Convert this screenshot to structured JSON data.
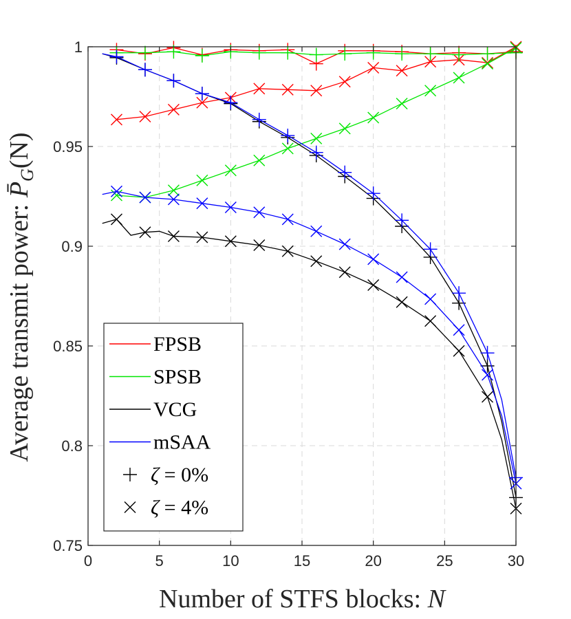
{
  "chart_data": {
    "type": "line",
    "title": "",
    "xlabel_text": "Number of STFS blocks: ",
    "xlabel_var": "N",
    "ylabel_text": "Average transmit power: ",
    "ylabel_var": "P̄",
    "ylabel_sub": "G",
    "ylabel_arg": "(N)",
    "xlim": [
      0,
      30
    ],
    "ylim": [
      0.75,
      1.0
    ],
    "x_ticks": [
      0,
      5,
      10,
      15,
      20,
      25,
      30
    ],
    "x_tick_labels": [
      "0",
      "5",
      "10",
      "15",
      "20",
      "25",
      "30"
    ],
    "y_ticks": [
      0.75,
      0.8,
      0.85,
      0.9,
      0.95,
      1.0
    ],
    "y_tick_labels": [
      "0.75",
      "0.8",
      "0.85",
      "0.9",
      "0.95",
      "1"
    ],
    "grid": true,
    "legend_position": "bottom-left",
    "series": [
      {
        "name": "FPSB ζ=0%",
        "method": "FPSB",
        "marker": "plus",
        "color": "#ff0000",
        "x": [
          2,
          4,
          6,
          8,
          10,
          12,
          14,
          16,
          18,
          20,
          22,
          24,
          26,
          28,
          30
        ],
        "y": [
          0.9985,
          0.9965,
          0.9995,
          0.996,
          0.9985,
          0.998,
          0.9985,
          0.9915,
          0.998,
          0.998,
          0.9975,
          0.9965,
          0.997,
          0.9965,
          0.9975
        ]
      },
      {
        "name": "FPSB ζ=4%",
        "method": "FPSB",
        "marker": "cross",
        "color": "#ff0000",
        "x": [
          2,
          4,
          6,
          8,
          10,
          12,
          14,
          16,
          18,
          20,
          22,
          24,
          26,
          28,
          30
        ],
        "y": [
          0.9635,
          0.965,
          0.9685,
          0.972,
          0.9745,
          0.979,
          0.9785,
          0.978,
          0.9825,
          0.9895,
          0.988,
          0.9925,
          0.9935,
          0.992,
          1.0
        ]
      },
      {
        "name": "SPSB ζ=0%",
        "method": "SPSB",
        "marker": "plus",
        "color": "#00e600",
        "x": [
          2,
          4,
          6,
          8,
          10,
          12,
          14,
          16,
          18,
          20,
          22,
          24,
          26,
          28,
          30
        ],
        "y": [
          0.997,
          0.997,
          0.9975,
          0.9955,
          0.9975,
          0.997,
          0.997,
          0.996,
          0.9965,
          0.997,
          0.9965,
          0.9965,
          0.996,
          0.9965,
          0.997
        ]
      },
      {
        "name": "SPSB ζ=4%",
        "method": "SPSB",
        "marker": "cross",
        "color": "#00e600",
        "x": [
          2,
          4,
          6,
          8,
          10,
          12,
          14,
          16,
          18,
          20,
          22,
          24,
          26,
          28,
          30
        ],
        "y": [
          0.9255,
          0.9245,
          0.928,
          0.933,
          0.938,
          0.943,
          0.949,
          0.954,
          0.959,
          0.9645,
          0.9715,
          0.978,
          0.9845,
          0.9915,
          0.9995
        ]
      },
      {
        "name": "VCG ζ=0%",
        "method": "VCG",
        "marker": "plus",
        "color": "#000000",
        "x": [
          1,
          2,
          4,
          6,
          8,
          10,
          12,
          14,
          16,
          18,
          20,
          22,
          24,
          26,
          28,
          29,
          30
        ],
        "y": [
          0.9965,
          0.9945,
          0.9885,
          0.983,
          0.9765,
          0.9715,
          0.9625,
          0.9545,
          0.9455,
          0.935,
          0.924,
          0.91,
          0.8945,
          0.8715,
          0.84,
          0.812,
          0.774
        ]
      },
      {
        "name": "VCG ζ=4%",
        "method": "VCG",
        "marker": "cross",
        "color": "#000000",
        "x": [
          1,
          2,
          3,
          4,
          5,
          6,
          8,
          10,
          12,
          14,
          16,
          18,
          20,
          22,
          24,
          26,
          28,
          29,
          30
        ],
        "y": [
          0.9115,
          0.9135,
          0.9055,
          0.907,
          0.9075,
          0.905,
          0.9045,
          0.9025,
          0.9005,
          0.8975,
          0.8925,
          0.887,
          0.8805,
          0.872,
          0.8625,
          0.8475,
          0.8245,
          0.803,
          0.7685
        ]
      },
      {
        "name": "mSAA ζ=0%",
        "method": "mSAA",
        "marker": "plus",
        "color": "#0000ff",
        "x": [
          1,
          2,
          4,
          6,
          8,
          10,
          12,
          14,
          16,
          18,
          20,
          22,
          24,
          26,
          28,
          29,
          30
        ],
        "y": [
          0.9965,
          0.995,
          0.9885,
          0.983,
          0.9765,
          0.972,
          0.9635,
          0.9555,
          0.947,
          0.937,
          0.9265,
          0.913,
          0.8985,
          0.8765,
          0.8465,
          0.823,
          0.784
        ]
      },
      {
        "name": "mSAA ζ=4%",
        "method": "mSAA",
        "marker": "cross",
        "color": "#0000ff",
        "x": [
          1,
          2,
          4,
          6,
          8,
          10,
          12,
          14,
          16,
          18,
          20,
          22,
          24,
          26,
          28,
          29,
          30
        ],
        "y": [
          0.926,
          0.9275,
          0.9245,
          0.9235,
          0.9215,
          0.9195,
          0.917,
          0.9135,
          0.9075,
          0.901,
          0.8935,
          0.8845,
          0.8735,
          0.858,
          0.8355,
          0.815,
          0.781
        ]
      }
    ],
    "legend": [
      {
        "kind": "line",
        "label": "FPSB",
        "color": "#ff0000"
      },
      {
        "kind": "line",
        "label": "SPSB",
        "color": "#00e600"
      },
      {
        "kind": "line",
        "label": "VCG",
        "color": "#000000"
      },
      {
        "kind": "line",
        "label": "mSAA",
        "color": "#0000ff"
      },
      {
        "kind": "marker",
        "marker": "plus",
        "label_var": "ζ",
        "label_rest": " = 0%",
        "color": "#000000"
      },
      {
        "kind": "marker",
        "marker": "cross",
        "label_var": "ζ",
        "label_rest": " = 4%",
        "color": "#000000"
      }
    ]
  }
}
